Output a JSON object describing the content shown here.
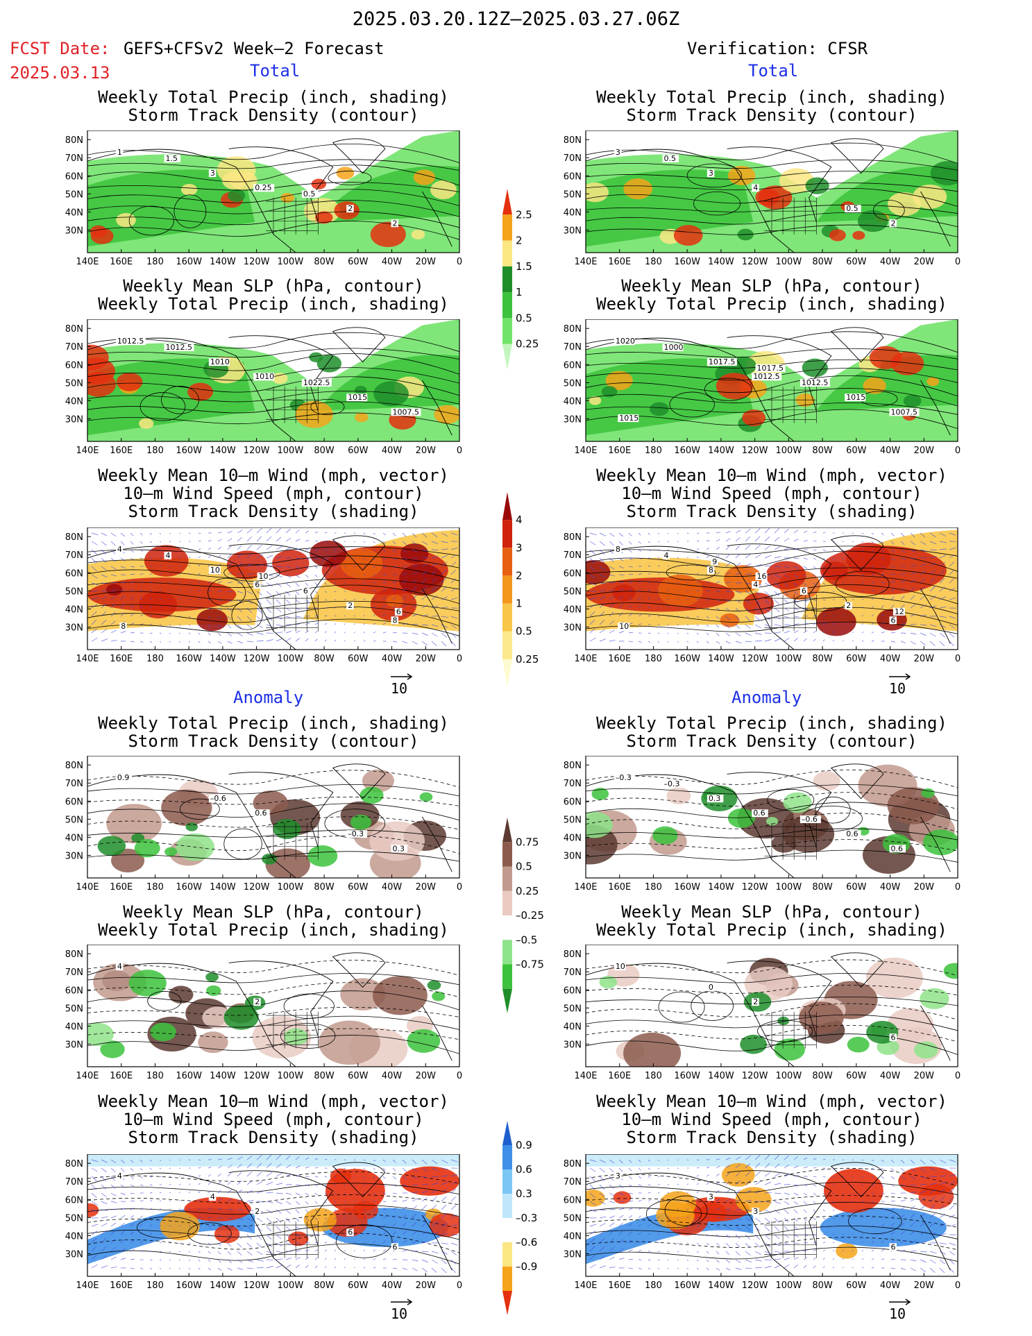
{
  "header": {
    "period": "2025.03.20.12Z–2025.03.27.06Z",
    "fcst_label": "FCST Date:",
    "fcst_model": "GEFS+CFSv2 Week–2 Forecast",
    "fcst_date": "2025.03.13",
    "verification": "Verification: CFSR"
  },
  "sections": {
    "total": "Total",
    "anomaly": "Anomaly"
  },
  "titles": {
    "precip_storm": [
      "Weekly Total Precip (inch, shading)",
      "Storm Track Density (contour)"
    ],
    "slp_precip": [
      "Weekly Mean SLP (hPa, contour)",
      "Weekly Total Precip (inch, shading)"
    ],
    "wind_storm": [
      "Weekly Mean 10–m Wind (mph, vector)",
      "10–m Wind Speed (mph, contour)",
      "Storm Track Density (shading)"
    ]
  },
  "axes": {
    "lat_labels": [
      "80N",
      "70N",
      "60N",
      "50N",
      "40N",
      "30N"
    ],
    "lon_labels": [
      "140E",
      "160E",
      "180",
      "160W",
      "140W",
      "120W",
      "100W",
      "80W",
      "60W",
      "40W",
      "20W",
      "0"
    ]
  },
  "vector_ref": "10",
  "colorbars": {
    "precip_total": {
      "labels": [
        "0.25",
        "0.5",
        "1",
        "1.5",
        "2",
        "2.5"
      ],
      "colors": [
        "#c4f5bf",
        "#72e36a",
        "#3cc23c",
        "#1f8e2a",
        "#fbe684",
        "#f5a31a",
        "#e4300f"
      ]
    },
    "storm_total": {
      "labels": [
        "0.25",
        "0.5",
        "1",
        "2",
        "3",
        "4"
      ],
      "colors": [
        "#fdfbd0",
        "#fbe98c",
        "#f8c64a",
        "#f2961f",
        "#e75f11",
        "#d0220d",
        "#9a0a0a"
      ]
    },
    "precip_anom": {
      "labels": [
        "0.75",
        "0.5",
        "0.25",
        "–0.25",
        "–0.5",
        "–0.75"
      ],
      "colors": [
        "#1f8e2a",
        "#3cc23c",
        "#8fe38a",
        "#ffffff",
        "#e9cbc3",
        "#c29a8d",
        "#8c5b4d",
        "#5c3a31"
      ]
    },
    "storm_anom": {
      "labels": [
        "0.9",
        "0.6",
        "0.3",
        "–0.3",
        "–0.6",
        "–0.9"
      ],
      "colors": [
        "#e4300f",
        "#f5a31a",
        "#fbe684",
        "#ffffff",
        "#bfe7f9",
        "#7cc6f3",
        "#3f8fe8",
        "#1e5fce"
      ]
    }
  },
  "contour_labels": {
    "p1": [
      "1",
      "0.25",
      "2",
      "3",
      "2",
      "1.5",
      "0.5"
    ],
    "p2": [
      "1012.5",
      "1010",
      "1007.5",
      "1010",
      "1015",
      "1012.5",
      "1022.5"
    ],
    "p3": [
      "4",
      "6",
      "8",
      "10",
      "2",
      "4",
      "6",
      "8",
      "10",
      "6"
    ],
    "p4": [
      "0.9",
      "0.6",
      "0.3",
      "–0.6",
      "–0.3"
    ],
    "p5": [
      "4",
      "2"
    ],
    "p6": [
      "4",
      "2",
      "6",
      "4",
      "6"
    ],
    "v1": [
      "3",
      "4",
      "2",
      "3",
      "0.5",
      "0.5"
    ],
    "v2": [
      "1020",
      "1012.5",
      "1007.5",
      "1017.5",
      "1015",
      "1000",
      "1012.5",
      "1015",
      "1017.5"
    ],
    "v3": [
      "8",
      "4",
      "6",
      "8",
      "2",
      "4",
      "6",
      "10",
      "16",
      "12",
      "9"
    ],
    "v4": [
      "–0.3",
      "0.6",
      "0.6",
      "0.3",
      "0.6",
      "–0.3",
      "–0.6"
    ],
    "v5": [
      "10",
      "2",
      "6",
      "0"
    ],
    "v6": [
      "3",
      "3",
      "6",
      "3"
    ]
  }
}
